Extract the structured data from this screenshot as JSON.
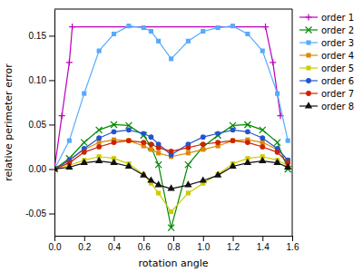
{
  "chart_data": {
    "type": "line",
    "xlabel": "rotation angle",
    "ylabel": "relative perimeter error",
    "xlim": [
      0,
      1.6
    ],
    "ylim": [
      -0.075,
      0.18
    ],
    "xticks": [
      {
        "value": 0,
        "label": "0.0"
      },
      0.2,
      0.4,
      0.6,
      0.8,
      {
        "value": 1.0,
        "label": "1.0"
      },
      1.2,
      1.4,
      1.6
    ],
    "yticks": [
      -0.05,
      {
        "value": 0,
        "label": "0.00"
      },
      0.05,
      {
        "value": 0.1,
        "label": "0.10"
      },
      0.15
    ],
    "grid": false,
    "legend": "upper right",
    "series": [
      {
        "name": "order 1",
        "color": "#bb00bb",
        "marker": "plus",
        "x": [
          0.0,
          0.05,
          0.1,
          0.12,
          1.42,
          1.47,
          1.5208
        ],
        "values": [
          0.0,
          0.06,
          0.12,
          0.16,
          0.16,
          0.12,
          0.06
        ]
      },
      {
        "name": "order 2",
        "color": "#008800",
        "marker": "x",
        "x": [
          0.0,
          0.1,
          0.2,
          0.3,
          0.4,
          0.5,
          0.6,
          0.65,
          0.7,
          0.7854,
          0.9,
          1.0,
          1.1,
          1.2,
          1.3,
          1.4,
          1.5,
          1.5708
        ],
        "values": [
          0.0,
          0.012,
          0.03,
          0.044,
          0.05,
          0.049,
          0.038,
          0.025,
          0.005,
          -0.066,
          0.005,
          0.025,
          0.038,
          0.049,
          0.05,
          0.044,
          0.03,
          0.0
        ]
      },
      {
        "name": "order 3",
        "color": "#55aaff",
        "marker": "square",
        "x": [
          0.0,
          0.1,
          0.2,
          0.3,
          0.4,
          0.5,
          0.6,
          0.65,
          0.7,
          0.7854,
          0.9,
          1.0,
          1.1,
          1.2,
          1.3,
          1.4,
          1.5,
          1.5708
        ],
        "values": [
          0.0,
          0.032,
          0.085,
          0.133,
          0.152,
          0.161,
          0.159,
          0.155,
          0.144,
          0.124,
          0.144,
          0.155,
          0.159,
          0.161,
          0.152,
          0.133,
          0.085,
          0.032
        ]
      },
      {
        "name": "order 4",
        "color": "#dd8800",
        "marker": "square",
        "x": [
          0.0,
          0.1,
          0.2,
          0.3,
          0.4,
          0.5,
          0.6,
          0.65,
          0.7,
          0.7854,
          0.9,
          1.0,
          1.1,
          1.2,
          1.3,
          1.4,
          1.5,
          1.5708
        ],
        "values": [
          0.0,
          0.01,
          0.022,
          0.03,
          0.033,
          0.032,
          0.026,
          0.022,
          0.018,
          0.014,
          0.018,
          0.022,
          0.026,
          0.032,
          0.033,
          0.03,
          0.022,
          0.01
        ]
      },
      {
        "name": "order 5",
        "color": "#cccc00",
        "marker": "square",
        "x": [
          0.0,
          0.1,
          0.2,
          0.3,
          0.4,
          0.5,
          0.6,
          0.65,
          0.7,
          0.7854,
          0.9,
          1.0,
          1.1,
          1.2,
          1.3,
          1.4,
          1.5,
          1.5708
        ],
        "values": [
          0.0,
          0.004,
          0.01,
          0.014,
          0.012,
          0.006,
          -0.006,
          -0.016,
          -0.027,
          -0.048,
          -0.027,
          -0.016,
          -0.006,
          0.006,
          0.012,
          0.014,
          0.01,
          0.004
        ]
      },
      {
        "name": "order 6",
        "color": "#2255cc",
        "marker": "circle",
        "x": [
          0.0,
          0.1,
          0.2,
          0.3,
          0.4,
          0.5,
          0.6,
          0.65,
          0.7,
          0.7854,
          0.9,
          1.0,
          1.1,
          1.2,
          1.3,
          1.4,
          1.5,
          1.5708
        ],
        "values": [
          0.0,
          0.01,
          0.023,
          0.035,
          0.042,
          0.044,
          0.04,
          0.036,
          0.028,
          0.016,
          0.028,
          0.036,
          0.04,
          0.044,
          0.042,
          0.035,
          0.023,
          0.01
        ]
      },
      {
        "name": "order 7",
        "color": "#cc2200",
        "marker": "circle",
        "x": [
          0.0,
          0.1,
          0.2,
          0.3,
          0.4,
          0.5,
          0.6,
          0.65,
          0.7,
          0.7854,
          0.9,
          1.0,
          1.1,
          1.2,
          1.3,
          1.4,
          1.5,
          1.5708
        ],
        "values": [
          0.0,
          0.007,
          0.019,
          0.025,
          0.03,
          0.032,
          0.03,
          0.028,
          0.024,
          0.02,
          0.024,
          0.028,
          0.03,
          0.032,
          0.03,
          0.025,
          0.019,
          0.007
        ]
      },
      {
        "name": "order 8",
        "color": "#111111",
        "marker": "triangle",
        "x": [
          0.0,
          0.1,
          0.2,
          0.3,
          0.4,
          0.5,
          0.6,
          0.65,
          0.7,
          0.7854,
          0.9,
          1.0,
          1.1,
          1.2,
          1.3,
          1.4,
          1.5,
          1.5708
        ],
        "values": [
          0.0,
          0.002,
          0.007,
          0.009,
          0.007,
          0.003,
          -0.007,
          -0.013,
          -0.018,
          -0.022,
          -0.018,
          -0.013,
          -0.007,
          0.003,
          0.007,
          0.009,
          0.007,
          0.002
        ]
      }
    ]
  }
}
